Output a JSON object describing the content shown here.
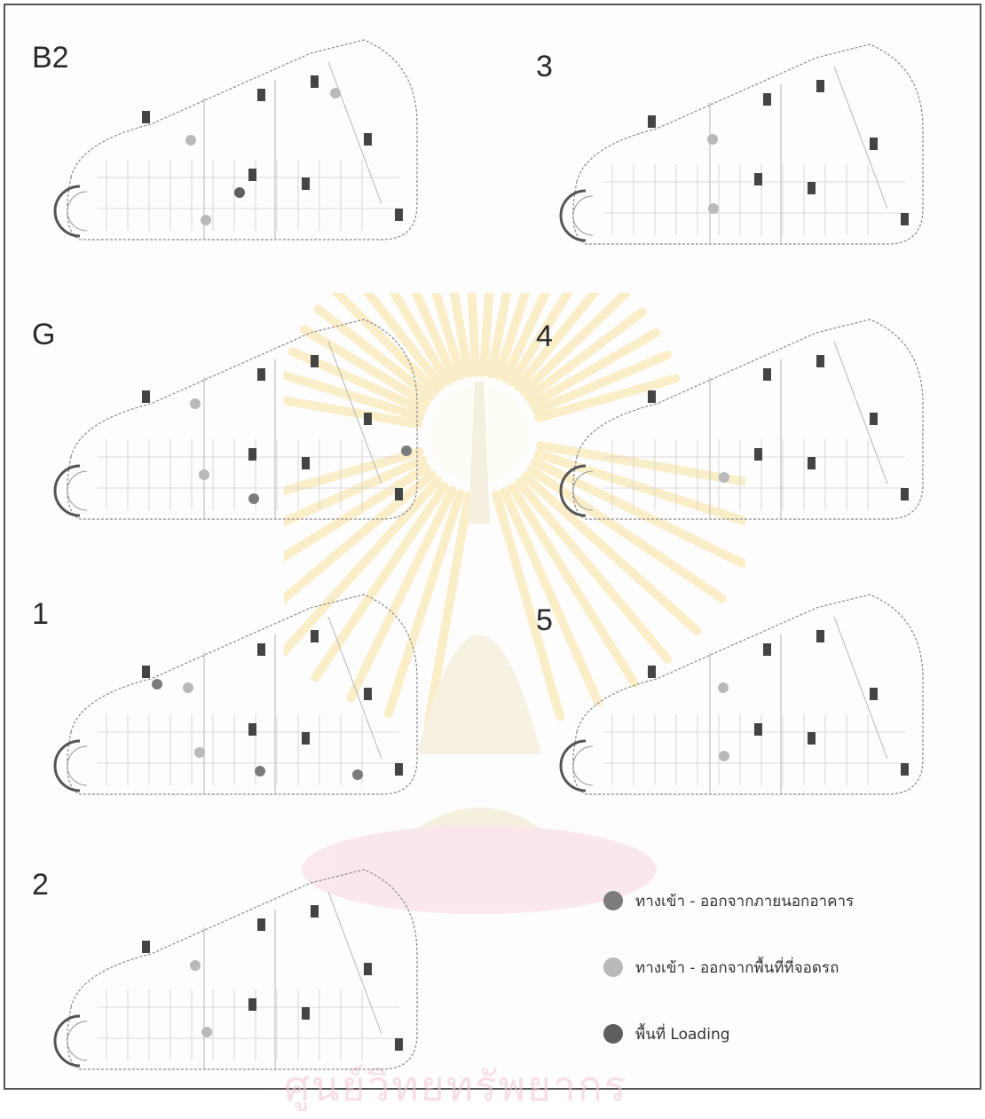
{
  "floors": [
    {
      "label": "B2"
    },
    {
      "label": "3"
    },
    {
      "label": "G"
    },
    {
      "label": "4"
    },
    {
      "label": "1"
    },
    {
      "label": "5"
    },
    {
      "label": "2"
    }
  ],
  "legend": [
    {
      "label": "ทางเข้า - ออกจากภายนอกอาคาร",
      "color": "#7c7c7c"
    },
    {
      "label": "ทางเข้า - ออกจากพื้นที่ที่จอดรถ",
      "color": "#b9b9b9"
    },
    {
      "label": "พื้นที่ Loading",
      "color": "#5e5e5e"
    }
  ],
  "watermark": {
    "text": "ศูนย์วิทยทรัพยากร"
  },
  "colors": {
    "outside_entrance": "#7c7c7c",
    "parking_entrance": "#b9b9b9",
    "loading": "#5e5e5e"
  }
}
